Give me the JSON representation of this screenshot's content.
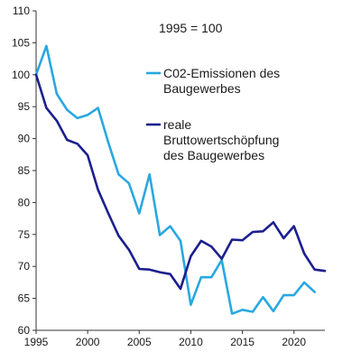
{
  "chart_data": {
    "type": "line",
    "annotation": "1995 = 100",
    "xlim": [
      1995,
      2023
    ],
    "ylim": [
      60,
      110
    ],
    "x_ticks": [
      1995,
      2000,
      2005,
      2010,
      2015,
      2020
    ],
    "y_ticks": [
      60,
      65,
      70,
      75,
      80,
      85,
      90,
      95,
      100,
      105,
      110
    ],
    "grid": false,
    "legend_position": "right",
    "x": [
      1995,
      1996,
      1997,
      1998,
      1999,
      2000,
      2001,
      2002,
      2003,
      2004,
      2005,
      2006,
      2007,
      2008,
      2009,
      2010,
      2011,
      2012,
      2013,
      2014,
      2015,
      2016,
      2017,
      2018,
      2019,
      2020,
      2021,
      2022,
      2023
    ],
    "series": [
      {
        "name_lines": [
          "C02-Emissionen des",
          "Baugewerbes"
        ],
        "color": "#29a8e0",
        "values": [
          100,
          104.5,
          97,
          94.5,
          93.2,
          93.7,
          94.8,
          89.4,
          84.4,
          83,
          78.3,
          84.4,
          74.9,
          76.3,
          74,
          64,
          68.3,
          68.3,
          71,
          62.6,
          63.2,
          62.9,
          65.2,
          63,
          65.5,
          65.5,
          67.5,
          66,
          null
        ]
      },
      {
        "name_lines": [
          "reale",
          "Bruttowertschöpfung",
          "des Baugewerbes"
        ],
        "color": "#1c1f8e",
        "values": [
          100,
          94.8,
          92.8,
          89.8,
          89.2,
          87.4,
          82,
          78.3,
          74.8,
          72.6,
          69.6,
          69.5,
          69.1,
          68.8,
          66.5,
          71.6,
          74,
          73.1,
          71.2,
          74.2,
          74.1,
          75.4,
          75.5,
          76.9,
          74.4,
          76.3,
          72,
          69.5,
          69.3
        ]
      }
    ]
  }
}
